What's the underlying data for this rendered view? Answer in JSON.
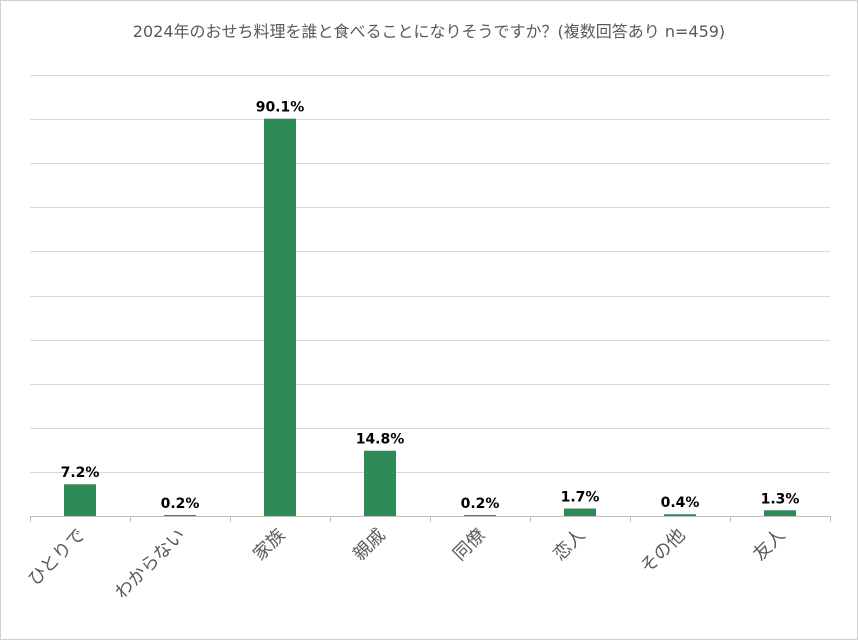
{
  "chart_data": {
    "type": "bar",
    "title": "2024年のおせち料理を誰と食べることになりそうですか？(複数回答あり n=459)",
    "categories": [
      "ひとりで",
      "わからない",
      "家族",
      "親戚",
      "同僚",
      "恋人",
      "その他",
      "友人"
    ],
    "values": [
      7.2,
      0.2,
      90.1,
      14.8,
      0.2,
      1.7,
      0.4,
      1.3
    ],
    "data_labels": [
      "7.2%",
      "0.2%",
      "90.1%",
      "14.8%",
      "0.2%",
      "1.7%",
      "0.4%",
      "1.3%"
    ],
    "xlabel": "",
    "ylabel": "",
    "ylim": [
      0,
      100
    ],
    "grid": true,
    "legend": "none",
    "bar_color": "#2e8b57"
  }
}
